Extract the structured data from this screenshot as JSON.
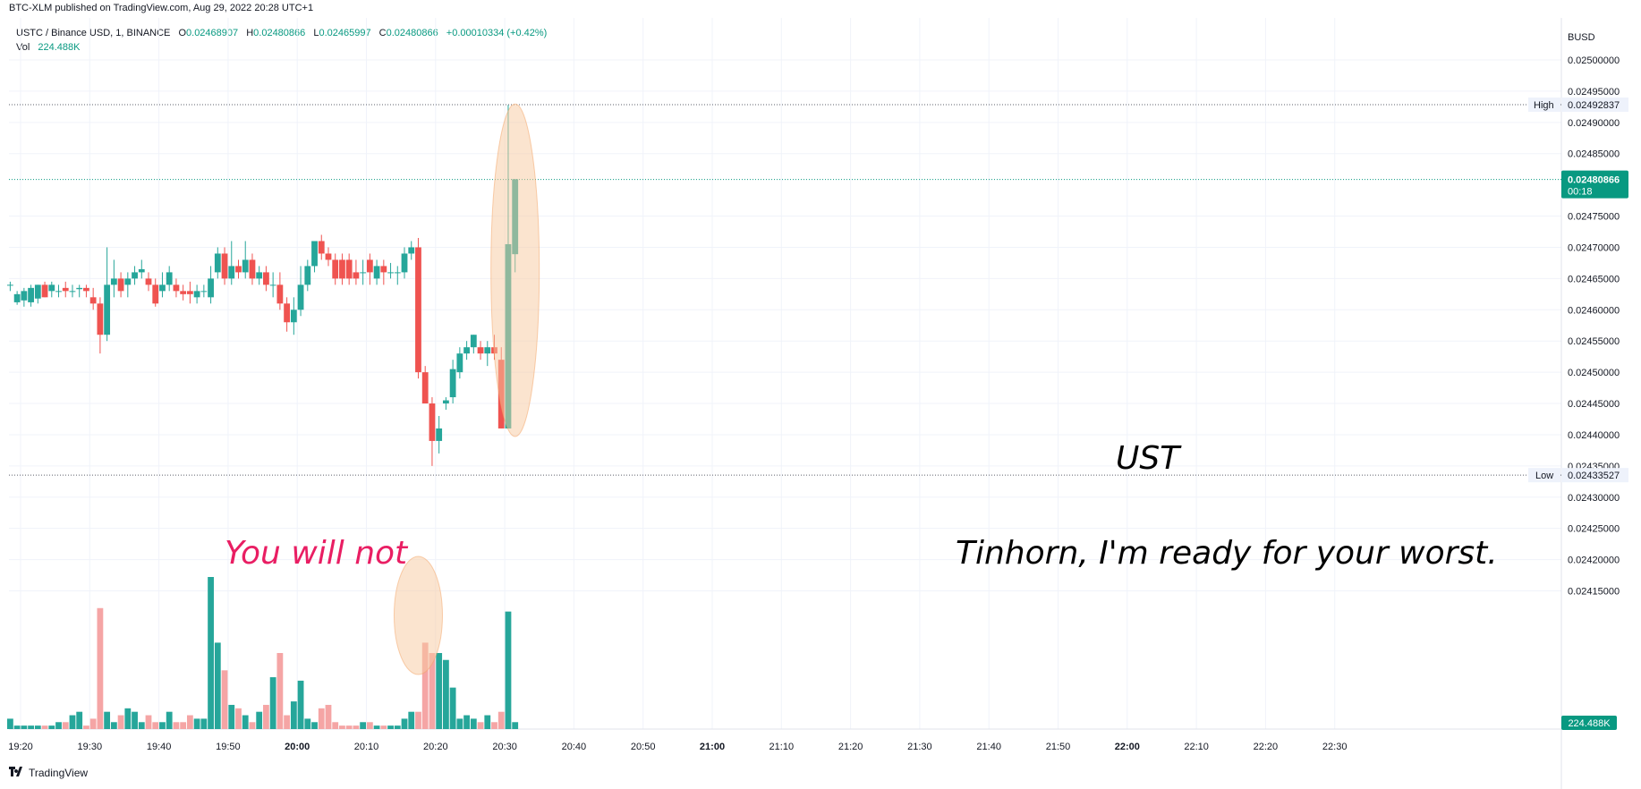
{
  "header": {
    "published": "BTC-XLM published on TradingView.com, Aug 29, 2022 20:28 UTC+1"
  },
  "legend": {
    "symbol": "USTC / Binance USD, 1, BINANCE",
    "o_label": "O",
    "o": "0.02468907",
    "h_label": "H",
    "h": "0.02480866",
    "l_label": "L",
    "l": "0.02465997",
    "c_label": "C",
    "c": "0.02480866",
    "change": "+0.00010334 (+0.42%)",
    "vol_label": "Vol",
    "vol": "224.488K"
  },
  "footer": {
    "brand": "TradingView"
  },
  "colors": {
    "up": "#26a69a",
    "down": "#ef5350",
    "vol_up": "#26a69a",
    "vol_down": "#f5a5a5",
    "badge": "#089981",
    "ellipse": "#f7c9a0"
  },
  "chart_data": {
    "type": "candlestick",
    "currency_label": "BUSD",
    "ylim": [
      0.02431,
      0.025045
    ],
    "price_ticks": [
      "0.02500000",
      "0.02495000",
      "0.02490000",
      "0.02485000",
      "0.02475000",
      "0.02470000",
      "0.02465000",
      "0.02460000",
      "0.02455000",
      "0.02450000",
      "0.02445000",
      "0.02440000",
      "0.02435000",
      "0.02430000",
      "0.02425000",
      "0.02420000",
      "0.02415000"
    ],
    "time_ticks": [
      "19:20",
      "19:30",
      "19:40",
      "19:50",
      "20:00",
      "20:10",
      "20:20",
      "20:30",
      "20:40",
      "20:50",
      "21:00",
      "21:10",
      "21:20",
      "21:30",
      "21:40",
      "21:50",
      "22:00",
      "22:10",
      "22:20",
      "22:30"
    ],
    "bold_time_ticks": [
      "20:00",
      "21:00",
      "22:00"
    ],
    "x_start_minute": 1160,
    "candles": [
      [
        0.02464,
        0.024645,
        0.02463,
        0.02464
      ],
      [
        0.024612,
        0.02463,
        0.024608,
        0.024625
      ],
      [
        0.024615,
        0.024635,
        0.024605,
        0.02463
      ],
      [
        0.024612,
        0.02464,
        0.024605,
        0.024635
      ],
      [
        0.024618,
        0.02464,
        0.02461,
        0.02464
      ],
      [
        0.02464,
        0.024645,
        0.02462,
        0.02462
      ],
      [
        0.02463,
        0.024645,
        0.02462,
        0.02464
      ],
      [
        0.02463,
        0.02464,
        0.02462,
        0.02463
      ],
      [
        0.024635,
        0.024645,
        0.02462,
        0.02463
      ],
      [
        0.02463,
        0.02464,
        0.02462,
        0.02463
      ],
      [
        0.024633,
        0.02464,
        0.02462,
        0.024635
      ],
      [
        0.024635,
        0.02464,
        0.02462,
        0.02463
      ],
      [
        0.02462,
        0.024635,
        0.0246,
        0.02461
      ],
      [
        0.02461,
        0.02462,
        0.02453,
        0.02456
      ],
      [
        0.02456,
        0.0247,
        0.02455,
        0.02464
      ],
      [
        0.02464,
        0.02468,
        0.02462,
        0.02465
      ],
      [
        0.02465,
        0.02466,
        0.02462,
        0.02463
      ],
      [
        0.02464,
        0.02466,
        0.02462,
        0.02465
      ],
      [
        0.02465,
        0.02467,
        0.02464,
        0.02466
      ],
      [
        0.02466,
        0.02468,
        0.02465,
        0.024665
      ],
      [
        0.02465,
        0.02466,
        0.02463,
        0.02464
      ],
      [
        0.02464,
        0.02465,
        0.024605,
        0.02461
      ],
      [
        0.02463,
        0.02466,
        0.02462,
        0.02464
      ],
      [
        0.02464,
        0.02467,
        0.02463,
        0.02466
      ],
      [
        0.02464,
        0.02465,
        0.02462,
        0.02463
      ],
      [
        0.02463,
        0.02464,
        0.024615,
        0.024625
      ],
      [
        0.02463,
        0.024645,
        0.02461,
        0.024625
      ],
      [
        0.02462,
        0.02464,
        0.02461,
        0.02463
      ],
      [
        0.02463,
        0.02464,
        0.02462,
        0.02463
      ],
      [
        0.02462,
        0.02467,
        0.02461,
        0.02465
      ],
      [
        0.02466,
        0.0247,
        0.02465,
        0.02469
      ],
      [
        0.02469,
        0.0247,
        0.02464,
        0.02465
      ],
      [
        0.02465,
        0.02471,
        0.02464,
        0.02467
      ],
      [
        0.02467,
        0.02468,
        0.02465,
        0.02466
      ],
      [
        0.02466,
        0.02471,
        0.02465,
        0.02468
      ],
      [
        0.02468,
        0.02469,
        0.02464,
        0.02465
      ],
      [
        0.02465,
        0.02467,
        0.02464,
        0.02466
      ],
      [
        0.02466,
        0.02467,
        0.02463,
        0.02464
      ],
      [
        0.02464,
        0.02466,
        0.02462,
        0.02464
      ],
      [
        0.02464,
        0.02466,
        0.0246,
        0.02461
      ],
      [
        0.02461,
        0.02462,
        0.024565,
        0.02458
      ],
      [
        0.02458,
        0.02462,
        0.02456,
        0.0246
      ],
      [
        0.0246,
        0.02467,
        0.02459,
        0.02464
      ],
      [
        0.02464,
        0.02468,
        0.02463,
        0.02467
      ],
      [
        0.02467,
        0.02471,
        0.02466,
        0.02471
      ],
      [
        0.02471,
        0.02472,
        0.02468,
        0.02469
      ],
      [
        0.02469,
        0.0247,
        0.02467,
        0.02468
      ],
      [
        0.02468,
        0.02469,
        0.02464,
        0.02465
      ],
      [
        0.02468,
        0.02469,
        0.02464,
        0.02465
      ],
      [
        0.02468,
        0.02469,
        0.02464,
        0.02465
      ],
      [
        0.02466,
        0.02468,
        0.02464,
        0.02465
      ],
      [
        0.02466,
        0.02468,
        0.02464,
        0.02466
      ],
      [
        0.02468,
        0.02469,
        0.02464,
        0.02466
      ],
      [
        0.02465,
        0.02468,
        0.02464,
        0.02467
      ],
      [
        0.02467,
        0.02468,
        0.02464,
        0.02466
      ],
      [
        0.02466,
        0.024675,
        0.02465,
        0.02466
      ],
      [
        0.02466,
        0.02467,
        0.02464,
        0.02466
      ],
      [
        0.02466,
        0.0247,
        0.02465,
        0.02469
      ],
      [
        0.02469,
        0.02471,
        0.02468,
        0.0247
      ],
      [
        0.0247,
        0.024715,
        0.02449,
        0.0245
      ],
      [
        0.0245,
        0.02451,
        0.02445,
        0.02445
      ],
      [
        0.02445,
        0.02446,
        0.02435,
        0.02439
      ],
      [
        0.02439,
        0.02443,
        0.02437,
        0.02441
      ],
      [
        0.02445,
        0.02446,
        0.02444,
        0.024455
      ],
      [
        0.02446,
        0.02452,
        0.02445,
        0.024505
      ],
      [
        0.0245,
        0.02454,
        0.02449,
        0.02453
      ],
      [
        0.02453,
        0.02455,
        0.02452,
        0.02454
      ],
      [
        0.02454,
        0.02456,
        0.02453,
        0.02456
      ],
      [
        0.02454,
        0.02455,
        0.02452,
        0.02453
      ],
      [
        0.02453,
        0.02455,
        0.02451,
        0.02454
      ],
      [
        0.02454,
        0.02456,
        0.02452,
        0.02453
      ],
      [
        0.02452,
        0.02454,
        0.02441,
        0.02441
      ],
      [
        0.02441,
        0.024928,
        0.02441,
        0.024705
      ],
      [
        0.024689,
        0.024809,
        0.02466,
        0.024809
      ]
    ],
    "volumes": [
      0.03,
      0.01,
      0.01,
      0.01,
      0.01,
      0.01,
      0.01,
      0.02,
      0.02,
      0.04,
      0.05,
      0.01,
      0.03,
      0.35,
      0.05,
      0.02,
      0.04,
      0.06,
      0.05,
      0.02,
      0.04,
      0.02,
      0.02,
      0.05,
      0.02,
      0.02,
      0.04,
      0.03,
      0.03,
      0.44,
      0.25,
      0.17,
      0.07,
      0.06,
      0.04,
      0.02,
      0.05,
      0.07,
      0.15,
      0.22,
      0.04,
      0.08,
      0.14,
      0.03,
      0.02,
      0.06,
      0.07,
      0.02,
      0.01,
      0.01,
      0.01,
      0.02,
      0.02,
      0.01,
      0.01,
      0.01,
      0.01,
      0.03,
      0.05,
      0.05,
      0.25,
      0.22,
      0.22,
      0.2,
      0.12,
      0.03,
      0.04,
      0.03,
      0.02,
      0.04,
      0.02,
      0.05,
      0.34,
      0.02
    ],
    "high_label": "High",
    "high_value": "0.02492837",
    "high_price": 0.02492837,
    "low_label": "Low",
    "low_value": "0.02433527",
    "low_price": 0.02433527,
    "last_value": "0.02480866",
    "last_price": 0.02480866,
    "countdown": "00:18",
    "vol_badge": "224.488K",
    "annotations": [
      {
        "text": "You will not",
        "color": "#e91e63"
      },
      {
        "text": "UST",
        "color": "#000000"
      },
      {
        "text": "Tinhorn, I'm ready for your worst.",
        "color": "#000000"
      }
    ]
  }
}
